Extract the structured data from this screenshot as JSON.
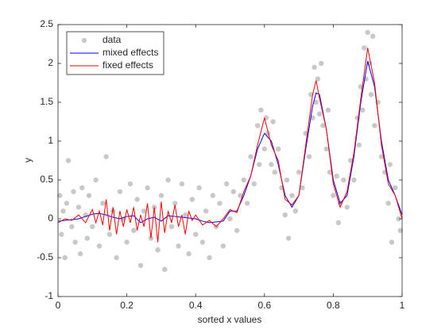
{
  "chart_data": {
    "type": "line",
    "xlabel": "sorted x values",
    "ylabel": "y",
    "xlim": [
      0,
      1
    ],
    "xticks": [
      0,
      0.2,
      0.4,
      0.6,
      0.8,
      1
    ],
    "ylim": [
      -1,
      2.5
    ],
    "yticks": [
      -1,
      -0.5,
      0,
      0.5,
      1,
      1.5,
      2,
      2.5
    ],
    "legend": "top-left",
    "series": [
      {
        "name": "data",
        "type": "scatter",
        "color": "#c8c8c8",
        "x": [
          0.005,
          0.01,
          0.015,
          0.02,
          0.025,
          0.03,
          0.04,
          0.045,
          0.05,
          0.06,
          0.065,
          0.07,
          0.08,
          0.085,
          0.09,
          0.1,
          0.11,
          0.12,
          0.13,
          0.14,
          0.15,
          0.16,
          0.17,
          0.18,
          0.19,
          0.2,
          0.21,
          0.22,
          0.23,
          0.24,
          0.25,
          0.26,
          0.27,
          0.28,
          0.29,
          0.3,
          0.31,
          0.32,
          0.33,
          0.34,
          0.35,
          0.36,
          0.37,
          0.38,
          0.39,
          0.4,
          0.41,
          0.42,
          0.43,
          0.44,
          0.45,
          0.46,
          0.47,
          0.48,
          0.49,
          0.5,
          0.51,
          0.52,
          0.53,
          0.54,
          0.55,
          0.56,
          0.57,
          0.58,
          0.585,
          0.59,
          0.6,
          0.605,
          0.61,
          0.62,
          0.625,
          0.63,
          0.64,
          0.65,
          0.66,
          0.665,
          0.67,
          0.68,
          0.69,
          0.7,
          0.71,
          0.72,
          0.73,
          0.735,
          0.74,
          0.745,
          0.75,
          0.755,
          0.76,
          0.765,
          0.77,
          0.78,
          0.785,
          0.79,
          0.8,
          0.81,
          0.815,
          0.82,
          0.83,
          0.84,
          0.85,
          0.86,
          0.87,
          0.875,
          0.88,
          0.885,
          0.89,
          0.895,
          0.9,
          0.905,
          0.91,
          0.915,
          0.92,
          0.93,
          0.94,
          0.95,
          0.96,
          0.965,
          0.97,
          0.98,
          0.99,
          0.995
        ],
        "values": [
          0.3,
          -0.2,
          0.1,
          -0.5,
          0.2,
          0.75,
          -0.1,
          0.35,
          -0.3,
          0.15,
          -0.45,
          0.4,
          0.05,
          -0.25,
          0.3,
          -0.1,
          0.5,
          -0.35,
          0.2,
          0.8,
          -0.2,
          0.1,
          -0.5,
          0.35,
          0.0,
          -0.3,
          0.45,
          -0.15,
          0.25,
          -0.6,
          0.1,
          0.4,
          -0.25,
          0.15,
          -0.4,
          0.3,
          -0.65,
          0.5,
          -0.1,
          0.2,
          -0.35,
          0.45,
          0.05,
          -0.45,
          0.25,
          -0.2,
          0.4,
          -0.3,
          0.1,
          -0.5,
          0.3,
          -0.1,
          0.2,
          -0.35,
          0.45,
          0.0,
          0.35,
          -0.15,
          0.3,
          0.5,
          0.2,
          0.8,
          0.45,
          1.2,
          0.7,
          1.4,
          0.9,
          1.3,
          1.1,
          0.7,
          1.25,
          0.6,
          0.9,
          0.4,
          0.05,
          0.5,
          -0.25,
          0.3,
          0.1,
          0.6,
          0.4,
          1.1,
          0.8,
          1.6,
          1.3,
          1.95,
          1.5,
          1.8,
          1.35,
          2.0,
          1.2,
          0.9,
          1.4,
          0.6,
          0.3,
          0.55,
          -0.05,
          0.2,
          0.5,
          0.15,
          0.75,
          0.5,
          1.3,
          0.95,
          1.7,
          1.4,
          2.2,
          1.8,
          2.4,
          2.0,
          1.6,
          2.35,
          1.2,
          1.5,
          0.8,
          0.6,
          0.2,
          0.7,
          -0.3,
          0.4,
          0.0,
          -0.15
        ]
      },
      {
        "name": "mixed effects",
        "type": "line",
        "color": "#0000ff",
        "x": [
          0,
          0.02,
          0.04,
          0.06,
          0.08,
          0.1,
          0.12,
          0.14,
          0.16,
          0.18,
          0.2,
          0.22,
          0.24,
          0.26,
          0.28,
          0.3,
          0.32,
          0.34,
          0.36,
          0.38,
          0.4,
          0.42,
          0.44,
          0.46,
          0.48,
          0.5,
          0.52,
          0.54,
          0.56,
          0.58,
          0.6,
          0.62,
          0.64,
          0.66,
          0.68,
          0.7,
          0.72,
          0.74,
          0.75,
          0.76,
          0.78,
          0.8,
          0.82,
          0.84,
          0.86,
          0.88,
          0.9,
          0.92,
          0.94,
          0.96,
          0.98,
          1
        ],
        "values": [
          -0.03,
          -0.02,
          -0.01,
          0.0,
          0.03,
          0.06,
          0.07,
          0.05,
          0.02,
          0.0,
          0.03,
          0.04,
          -0.05,
          0.0,
          0.02,
          -0.03,
          0.04,
          0.03,
          0.02,
          0.01,
          0.0,
          -0.03,
          -0.05,
          -0.04,
          -0.03,
          0.1,
          0.1,
          0.3,
          0.55,
          0.9,
          1.1,
          1.0,
          0.7,
          0.3,
          0.15,
          0.3,
          0.9,
          1.45,
          1.62,
          1.6,
          1.15,
          0.5,
          0.2,
          0.3,
          0.8,
          1.5,
          2.03,
          1.7,
          1.0,
          0.5,
          0.3,
          0.05
        ]
      },
      {
        "name": "fixed effects",
        "type": "line",
        "color": "#ff0000",
        "x": [
          0,
          0.02,
          0.04,
          0.06,
          0.08,
          0.1,
          0.11,
          0.12,
          0.13,
          0.14,
          0.15,
          0.16,
          0.17,
          0.18,
          0.19,
          0.2,
          0.21,
          0.22,
          0.23,
          0.24,
          0.25,
          0.26,
          0.27,
          0.28,
          0.29,
          0.3,
          0.31,
          0.32,
          0.33,
          0.34,
          0.35,
          0.36,
          0.37,
          0.38,
          0.39,
          0.4,
          0.42,
          0.44,
          0.46,
          0.48,
          0.5,
          0.52,
          0.54,
          0.56,
          0.58,
          0.6,
          0.62,
          0.64,
          0.66,
          0.68,
          0.7,
          0.72,
          0.74,
          0.75,
          0.76,
          0.78,
          0.8,
          0.82,
          0.84,
          0.86,
          0.88,
          0.9,
          0.92,
          0.94,
          0.96,
          0.98,
          1
        ],
        "values": [
          -0.05,
          0.0,
          -0.02,
          0.05,
          -0.05,
          0.12,
          -0.05,
          0.1,
          -0.08,
          0.25,
          -0.15,
          0.15,
          -0.2,
          0.1,
          -0.1,
          0.12,
          -0.05,
          0.15,
          -0.15,
          0.05,
          -0.1,
          0.2,
          -0.25,
          0.15,
          -0.3,
          0.22,
          -0.18,
          0.1,
          -0.05,
          0.18,
          -0.1,
          0.05,
          -0.2,
          0.1,
          -0.02,
          0.05,
          -0.08,
          -0.02,
          -0.1,
          0.0,
          0.12,
          0.08,
          0.35,
          0.55,
          0.95,
          1.3,
          0.95,
          0.75,
          0.25,
          0.18,
          0.3,
          0.95,
          1.6,
          1.78,
          1.55,
          1.15,
          0.45,
          0.15,
          0.35,
          0.85,
          1.55,
          2.2,
          1.75,
          0.95,
          0.45,
          0.3,
          0.0
        ]
      }
    ]
  }
}
